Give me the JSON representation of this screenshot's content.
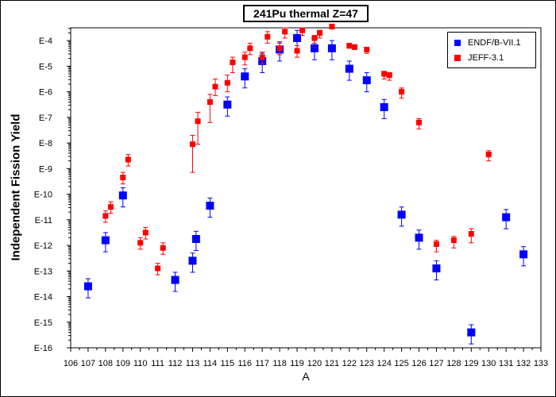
{
  "chart_data": {
    "type": "scatter",
    "title": "241Pu thermal Z=47",
    "xlabel": "A",
    "ylabel": "Independent Fission Yield",
    "xlim": [
      106,
      133
    ],
    "ylim_log10": [
      -16,
      -3.5
    ],
    "y_scale": "log",
    "xticks": [
      106,
      107,
      108,
      109,
      110,
      111,
      112,
      113,
      114,
      115,
      116,
      117,
      118,
      119,
      120,
      121,
      122,
      123,
      124,
      125,
      126,
      127,
      128,
      129,
      130,
      131,
      132,
      133
    ],
    "ytick_labels": [
      {
        "exp": -4,
        "label": "E-4"
      },
      {
        "exp": -5,
        "label": "E-5"
      },
      {
        "exp": -6,
        "label": "E-6"
      },
      {
        "exp": -7,
        "label": "E-7"
      },
      {
        "exp": -8,
        "label": "E-8"
      },
      {
        "exp": -9,
        "label": "E-9"
      },
      {
        "exp": -10,
        "label": "E-10"
      },
      {
        "exp": -11,
        "label": "E-11"
      },
      {
        "exp": -12,
        "label": "E-12"
      },
      {
        "exp": -13,
        "label": "E-13"
      },
      {
        "exp": -14,
        "label": "E-14"
      },
      {
        "exp": -15,
        "label": "E-15"
      },
      {
        "exp": -16,
        "label": "E-16"
      }
    ],
    "legend_position": "top-right",
    "series": [
      {
        "name": "ENDF/B-VII.1",
        "color": "#0000ff",
        "marker": "square",
        "points": [
          {
            "A": 107,
            "log10y": -13.6,
            "err_up": 0.3,
            "err_down": 0.45
          },
          {
            "A": 108,
            "log10y": -11.8,
            "err_up": 0.3,
            "err_down": 0.45
          },
          {
            "A": 109,
            "log10y": -10.05,
            "err_up": 0.3,
            "err_down": 0.45
          },
          {
            "A": 112,
            "log10y": -13.35,
            "err_up": 0.3,
            "err_down": 0.45
          },
          {
            "A": 113,
            "log10y": -12.6,
            "err_up": 0.3,
            "err_down": 0.45
          },
          {
            "A": 113.2,
            "log10y": -11.75,
            "err_up": 0.3,
            "err_down": 0.45
          },
          {
            "A": 114,
            "log10y": -10.45,
            "err_up": 0.3,
            "err_down": 0.45
          },
          {
            "A": 115,
            "log10y": -6.5,
            "err_up": 0.3,
            "err_down": 0.45
          },
          {
            "A": 116,
            "log10y": -5.4,
            "err_up": 0.3,
            "err_down": 0.45
          },
          {
            "A": 117,
            "log10y": -4.8,
            "err_up": 0.3,
            "err_down": 0.45
          },
          {
            "A": 118,
            "log10y": -4.35,
            "err_up": 0.3,
            "err_down": 0.45
          },
          {
            "A": 119,
            "log10y": -3.9,
            "err_up": 0.3,
            "err_down": 0.45
          },
          {
            "A": 120,
            "log10y": -4.3,
            "err_up": 0.3,
            "err_down": 0.45
          },
          {
            "A": 121,
            "log10y": -4.3,
            "err_up": 0.3,
            "err_down": 0.45
          },
          {
            "A": 122,
            "log10y": -5.1,
            "err_up": 0.3,
            "err_down": 0.45
          },
          {
            "A": 123,
            "log10y": -5.55,
            "err_up": 0.3,
            "err_down": 0.45
          },
          {
            "A": 124,
            "log10y": -6.6,
            "err_up": 0.3,
            "err_down": 0.45
          },
          {
            "A": 125,
            "log10y": -10.8,
            "err_up": 0.3,
            "err_down": 0.45
          },
          {
            "A": 126,
            "log10y": -11.7,
            "err_up": 0.3,
            "err_down": 0.45
          },
          {
            "A": 127,
            "log10y": -12.9,
            "err_up": 0.3,
            "err_down": 0.45
          },
          {
            "A": 129,
            "log10y": -15.4,
            "err_up": 0.3,
            "err_down": 0.45
          },
          {
            "A": 131,
            "log10y": -10.9,
            "err_up": 0.3,
            "err_down": 0.45
          },
          {
            "A": 132,
            "log10y": -12.35,
            "err_up": 0.3,
            "err_down": 0.45
          }
        ]
      },
      {
        "name": "JEFF-3.1",
        "color": "#ff0000",
        "marker": "square",
        "points": [
          {
            "A": 108,
            "log10y": -10.85,
            "err_up": 0.2,
            "err_down": 0.25
          },
          {
            "A": 108.3,
            "log10y": -10.5,
            "err_up": 0.2,
            "err_down": 0.25
          },
          {
            "A": 109,
            "log10y": -9.35,
            "err_up": 0.2,
            "err_down": 0.25
          },
          {
            "A": 109.3,
            "log10y": -8.65,
            "err_up": 0.2,
            "err_down": 0.25
          },
          {
            "A": 110,
            "log10y": -11.9,
            "err_up": 0.2,
            "err_down": 0.25
          },
          {
            "A": 110.3,
            "log10y": -11.5,
            "err_up": 0.2,
            "err_down": 0.25
          },
          {
            "A": 111,
            "log10y": -12.9,
            "err_up": 0.2,
            "err_down": 0.25
          },
          {
            "A": 111.3,
            "log10y": -12.1,
            "err_up": 0.2,
            "err_down": 0.25
          },
          {
            "A": 113,
            "log10y": -8.05,
            "err_up": 0.35,
            "err_down": 1.1
          },
          {
            "A": 113.3,
            "log10y": -7.15,
            "err_up": 0.35,
            "err_down": 0.9
          },
          {
            "A": 114,
            "log10y": -6.4,
            "err_up": 0.3,
            "err_down": 0.8
          },
          {
            "A": 114.3,
            "log10y": -5.8,
            "err_up": 0.3,
            "err_down": 0.35
          },
          {
            "A": 115,
            "log10y": -5.65,
            "err_up": 0.3,
            "err_down": 0.35
          },
          {
            "A": 115.3,
            "log10y": -4.85,
            "err_up": 0.2,
            "err_down": 0.4
          },
          {
            "A": 116,
            "log10y": -4.65,
            "err_up": 0.2,
            "err_down": 0.3
          },
          {
            "A": 116.3,
            "log10y": -4.3,
            "err_up": 0.2,
            "err_down": 0.25
          },
          {
            "A": 117,
            "log10y": -4.65,
            "err_up": 0.2,
            "err_down": 0.25
          },
          {
            "A": 117.3,
            "log10y": -3.85,
            "err_up": 0.2,
            "err_down": 0.25
          },
          {
            "A": 118,
            "log10y": -4.3,
            "err_up": 0.2,
            "err_down": 0.25
          },
          {
            "A": 118.3,
            "log10y": -3.65,
            "err_up": 0.15,
            "err_down": 0.25
          },
          {
            "A": 119,
            "log10y": -4.4,
            "err_up": 0.2,
            "err_down": 0.25
          },
          {
            "A": 119.3,
            "log10y": -3.6,
            "err_up": 0.1,
            "err_down": 0.2
          },
          {
            "A": 120,
            "log10y": -3.9,
            "err_up": 0.1,
            "err_down": 0.2
          },
          {
            "A": 120.3,
            "log10y": -3.7,
            "err_up": 0.1,
            "err_down": 0.2
          },
          {
            "A": 121,
            "log10y": -3.45,
            "err_up": 0.05,
            "err_down": 0.1
          },
          {
            "A": 122,
            "log10y": -4.2,
            "err_up": 0.05,
            "err_down": 0.1
          },
          {
            "A": 122.3,
            "log10y": -4.25,
            "err_up": 0.05,
            "err_down": 0.1
          },
          {
            "A": 123,
            "log10y": -4.35,
            "err_up": 0.05,
            "err_down": 0.15
          },
          {
            "A": 124,
            "log10y": -5.3,
            "err_up": 0.1,
            "err_down": 0.2
          },
          {
            "A": 124.3,
            "log10y": -5.35,
            "err_up": 0.1,
            "err_down": 0.2
          },
          {
            "A": 125,
            "log10y": -6.0,
            "err_up": 0.15,
            "err_down": 0.25
          },
          {
            "A": 126,
            "log10y": -7.2,
            "err_up": 0.15,
            "err_down": 0.25
          },
          {
            "A": 127,
            "log10y": -11.95,
            "err_up": 0.15,
            "err_down": 0.3
          },
          {
            "A": 128,
            "log10y": -11.8,
            "err_up": 0.15,
            "err_down": 0.3
          },
          {
            "A": 129,
            "log10y": -11.55,
            "err_up": 0.2,
            "err_down": 0.35
          },
          {
            "A": 130,
            "log10y": -8.45,
            "err_up": 0.15,
            "err_down": 0.25
          }
        ]
      }
    ]
  }
}
